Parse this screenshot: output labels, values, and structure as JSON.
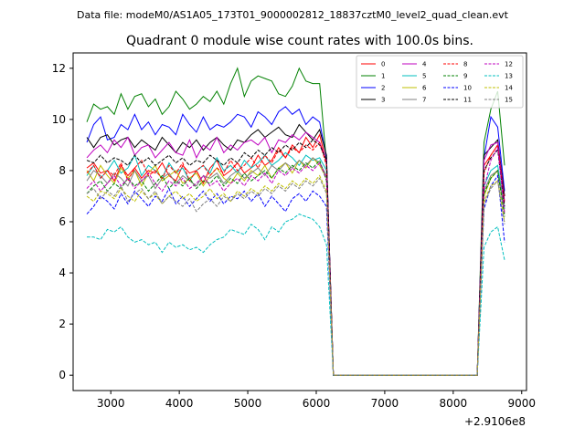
{
  "header": {
    "suptitle": "Data file: modeM0/AS1A05_173T01_9000002812_18837cztM0_level2_quad_clean.evt"
  },
  "chart_data": {
    "type": "line",
    "title": "Quadrant 0 module wise count rates with 100.0s bins.",
    "xlabel": "",
    "ylabel": "",
    "x_offset_label": "+2.9106e8",
    "xlim": [
      2450,
      9070
    ],
    "ylim": [
      -0.6,
      12.6
    ],
    "x_ticks": [
      3000,
      4000,
      5000,
      6000,
      7000,
      8000,
      9000
    ],
    "x_tick_labels": [
      "3000",
      "4000",
      "5000",
      "6000",
      "7000",
      "8000",
      "9000"
    ],
    "y_ticks": [
      0,
      2,
      4,
      6,
      8,
      10,
      12
    ],
    "y_tick_labels": [
      "0",
      "2",
      "4",
      "6",
      "8",
      "10",
      "12"
    ],
    "legend_position": "top-right",
    "gap_interval": [
      6250,
      8350
    ],
    "x": [
      2650,
      2750,
      2850,
      2950,
      3050,
      3150,
      3250,
      3350,
      3450,
      3550,
      3650,
      3750,
      3850,
      3950,
      4050,
      4150,
      4250,
      4350,
      4450,
      4550,
      4650,
      4750,
      4850,
      4950,
      5050,
      5150,
      5250,
      5350,
      5450,
      5550,
      5650,
      5750,
      5850,
      5950,
      6050,
      6150,
      6250,
      8350,
      8450,
      8550,
      8650,
      8750
    ],
    "series": [
      {
        "name": "0",
        "color": "#ff0000",
        "style": "solid",
        "values": [
          8.1,
          8.3,
          7.9,
          8.0,
          7.6,
          8.2,
          7.8,
          8.1,
          7.7,
          8.0,
          7.9,
          8.3,
          7.8,
          7.6,
          8.2,
          7.9,
          8.0,
          7.5,
          8.1,
          8.4,
          7.8,
          8.0,
          8.3,
          7.9,
          8.1,
          8.6,
          8.2,
          8.4,
          8.9,
          8.5,
          9.0,
          8.7,
          9.3,
          8.9,
          9.4,
          8.3,
          0.0,
          0.0,
          8.2,
          8.6,
          9.0,
          7.0
        ]
      },
      {
        "name": "1",
        "color": "#008000",
        "style": "solid",
        "values": [
          9.9,
          10.6,
          10.4,
          10.5,
          10.2,
          11.0,
          10.4,
          10.9,
          11.0,
          10.5,
          10.8,
          10.2,
          10.5,
          11.1,
          10.8,
          10.4,
          10.6,
          10.9,
          10.7,
          11.1,
          10.6,
          11.4,
          12.0,
          10.9,
          11.5,
          11.7,
          11.6,
          11.5,
          11.0,
          10.9,
          11.3,
          12.0,
          11.5,
          11.4,
          11.4,
          8.3,
          0.0,
          0.0,
          9.1,
          10.4,
          11.1,
          8.2
        ]
      },
      {
        "name": "2",
        "color": "#0000ff",
        "style": "solid",
        "values": [
          9.1,
          9.8,
          10.1,
          9.2,
          9.3,
          9.8,
          9.6,
          10.2,
          9.6,
          9.9,
          9.4,
          9.8,
          9.7,
          9.4,
          10.2,
          9.8,
          9.5,
          10.1,
          9.6,
          9.8,
          9.7,
          9.9,
          10.2,
          10.1,
          9.7,
          10.3,
          10.1,
          9.8,
          10.3,
          10.5,
          10.2,
          10.4,
          9.8,
          10.1,
          9.9,
          8.5,
          0.0,
          0.0,
          8.5,
          10.1,
          9.7,
          7.2
        ]
      },
      {
        "name": "3",
        "color": "#000000",
        "style": "solid",
        "values": [
          9.3,
          8.9,
          9.3,
          9.4,
          9.0,
          9.2,
          9.3,
          8.9,
          9.2,
          9.0,
          8.8,
          9.3,
          9.0,
          8.7,
          9.1,
          8.9,
          9.2,
          8.8,
          9.1,
          9.3,
          9.0,
          8.8,
          9.2,
          9.1,
          9.4,
          9.6,
          9.3,
          9.5,
          9.7,
          9.4,
          9.3,
          9.8,
          9.5,
          9.2,
          9.6,
          8.6,
          0.0,
          0.0,
          8.6,
          8.9,
          9.2,
          7.0
        ]
      },
      {
        "name": "4",
        "color": "#bf00bf",
        "style": "solid",
        "values": [
          8.5,
          8.8,
          9.0,
          8.7,
          9.2,
          8.9,
          9.3,
          8.6,
          8.9,
          9.0,
          8.5,
          8.8,
          9.1,
          8.7,
          8.6,
          9.2,
          8.5,
          9.0,
          8.8,
          9.3,
          8.7,
          9.0,
          8.8,
          9.1,
          9.2,
          9.0,
          9.3,
          8.7,
          9.2,
          9.1,
          9.4,
          9.2,
          9.5,
          9.3,
          9.1,
          8.4,
          0.0,
          0.0,
          8.4,
          9.0,
          9.1,
          6.8
        ]
      },
      {
        "name": "5",
        "color": "#00bfbf",
        "style": "solid",
        "values": [
          7.8,
          8.2,
          7.7,
          8.0,
          8.4,
          7.9,
          8.1,
          8.6,
          7.8,
          8.2,
          8.0,
          7.7,
          8.3,
          7.9,
          8.1,
          7.6,
          8.0,
          8.2,
          7.9,
          8.5,
          8.0,
          8.2,
          7.9,
          8.4,
          8.1,
          8.3,
          8.6,
          8.2,
          8.4,
          8.7,
          8.5,
          8.2,
          8.6,
          8.4,
          8.5,
          8.0,
          0.0,
          0.0,
          7.4,
          8.0,
          8.2,
          6.5
        ]
      },
      {
        "name": "6",
        "color": "#bfbf00",
        "style": "solid",
        "values": [
          8.0,
          7.6,
          8.2,
          7.8,
          7.5,
          8.1,
          7.7,
          8.0,
          7.4,
          7.9,
          8.2,
          7.6,
          7.8,
          8.0,
          7.5,
          7.7,
          7.9,
          7.4,
          7.8,
          8.1,
          7.7,
          7.5,
          7.9,
          7.6,
          8.0,
          7.8,
          8.2,
          7.7,
          8.1,
          8.3,
          7.9,
          8.4,
          8.1,
          8.5,
          8.2,
          7.7,
          0.0,
          0.0,
          7.0,
          7.7,
          8.0,
          6.4
        ]
      },
      {
        "name": "7",
        "color": "#808080",
        "style": "solid",
        "values": [
          7.6,
          8.0,
          7.8,
          7.5,
          7.9,
          7.7,
          7.4,
          8.0,
          7.6,
          7.8,
          7.3,
          7.7,
          7.9,
          7.5,
          7.8,
          7.6,
          7.4,
          7.8,
          7.7,
          7.9,
          7.5,
          7.8,
          8.0,
          7.7,
          7.9,
          8.1,
          7.8,
          8.2,
          8.0,
          8.3,
          8.1,
          8.4,
          8.2,
          8.5,
          8.3,
          7.8,
          0.0,
          0.0,
          7.2,
          7.8,
          8.0,
          6.3
        ]
      },
      {
        "name": "8",
        "color": "#ff0000",
        "style": "dashed",
        "values": [
          7.9,
          8.2,
          7.7,
          8.0,
          7.8,
          8.3,
          7.6,
          8.1,
          8.4,
          7.8,
          8.0,
          7.7,
          8.2,
          7.9,
          8.3,
          7.6,
          8.0,
          8.2,
          7.8,
          8.1,
          7.9,
          8.4,
          8.0,
          8.2,
          8.5,
          8.1,
          8.6,
          8.3,
          8.8,
          8.5,
          8.9,
          8.7,
          9.0,
          8.8,
          9.1,
          8.2,
          0.0,
          0.0,
          7.9,
          8.6,
          9.0,
          6.7
        ]
      },
      {
        "name": "9",
        "color": "#008000",
        "style": "dashed",
        "values": [
          7.1,
          7.4,
          7.6,
          7.2,
          7.5,
          7.3,
          7.7,
          7.4,
          7.6,
          7.2,
          7.5,
          7.8,
          7.3,
          7.6,
          7.4,
          7.7,
          7.3,
          7.6,
          7.5,
          7.8,
          7.4,
          7.7,
          7.5,
          7.9,
          7.6,
          7.8,
          8.0,
          7.7,
          8.1,
          7.9,
          8.2,
          8.0,
          8.3,
          8.1,
          8.4,
          7.6,
          0.0,
          0.0,
          7.1,
          7.7,
          8.0,
          6.2
        ]
      },
      {
        "name": "10",
        "color": "#0000ff",
        "style": "dashed",
        "values": [
          6.3,
          6.6,
          7.0,
          6.8,
          6.5,
          7.1,
          6.7,
          7.2,
          6.9,
          6.6,
          7.0,
          6.8,
          7.3,
          6.7,
          7.0,
          6.6,
          6.9,
          7.2,
          6.8,
          7.1,
          6.7,
          7.0,
          6.9,
          7.2,
          6.8,
          7.1,
          6.6,
          7.0,
          6.7,
          6.4,
          6.9,
          7.1,
          6.8,
          7.2,
          7.0,
          6.6,
          0.0,
          0.0,
          6.5,
          7.4,
          7.8,
          5.2
        ]
      },
      {
        "name": "11",
        "color": "#000000",
        "style": "dashed",
        "values": [
          8.4,
          8.3,
          8.6,
          8.3,
          8.5,
          8.4,
          8.2,
          8.6,
          8.3,
          8.5,
          8.2,
          8.4,
          8.6,
          8.3,
          8.5,
          8.2,
          8.4,
          8.3,
          8.6,
          8.4,
          8.2,
          8.5,
          8.3,
          8.7,
          8.5,
          8.8,
          8.6,
          8.9,
          8.7,
          9.0,
          8.8,
          9.1,
          8.9,
          9.2,
          9.0,
          8.4,
          0.0,
          0.0,
          8.0,
          8.5,
          8.8,
          6.6
        ]
      },
      {
        "name": "12",
        "color": "#bf00bf",
        "style": "dashed",
        "values": [
          7.3,
          7.6,
          7.2,
          7.5,
          7.8,
          7.4,
          7.7,
          7.3,
          7.6,
          7.9,
          7.5,
          7.2,
          7.6,
          7.4,
          7.7,
          7.3,
          7.5,
          7.8,
          7.4,
          7.6,
          7.2,
          7.5,
          7.7,
          7.4,
          7.8,
          7.6,
          7.9,
          7.5,
          8.0,
          7.8,
          8.1,
          7.9,
          8.2,
          8.0,
          8.3,
          7.7,
          0.0,
          0.0,
          7.3,
          8.4,
          8.9,
          6.3
        ]
      },
      {
        "name": "13",
        "color": "#00bfbf",
        "style": "dashed",
        "values": [
          5.4,
          5.4,
          5.3,
          5.7,
          5.6,
          5.8,
          5.4,
          5.2,
          5.3,
          5.1,
          5.2,
          4.8,
          5.2,
          5.0,
          5.1,
          4.9,
          5.0,
          4.8,
          5.1,
          5.3,
          5.4,
          5.7,
          5.6,
          5.5,
          5.9,
          5.7,
          5.3,
          5.8,
          5.6,
          6.0,
          6.1,
          6.3,
          6.2,
          6.1,
          5.8,
          5.1,
          0.0,
          0.0,
          5.0,
          5.6,
          5.8,
          4.5
        ]
      },
      {
        "name": "14",
        "color": "#bfbf00",
        "style": "dashed",
        "values": [
          7.0,
          6.8,
          7.2,
          7.1,
          6.9,
          7.3,
          7.0,
          6.8,
          7.2,
          6.9,
          7.1,
          6.7,
          7.0,
          7.2,
          6.9,
          7.1,
          6.8,
          7.0,
          7.3,
          6.9,
          7.1,
          6.8,
          7.2,
          7.0,
          7.3,
          7.1,
          7.4,
          7.2,
          7.5,
          7.3,
          7.6,
          7.4,
          7.7,
          7.5,
          7.8,
          7.2,
          0.0,
          0.0,
          6.8,
          7.4,
          7.6,
          6.0
        ]
      },
      {
        "name": "15",
        "color": "#808080",
        "style": "dashed",
        "values": [
          7.1,
          7.3,
          6.9,
          7.2,
          7.0,
          7.4,
          6.8,
          7.1,
          7.3,
          6.9,
          7.2,
          6.7,
          7.0,
          6.8,
          6.6,
          6.9,
          6.4,
          6.7,
          6.9,
          6.6,
          7.0,
          6.8,
          7.1,
          6.9,
          7.2,
          7.0,
          7.3,
          7.1,
          7.4,
          7.2,
          7.5,
          7.3,
          7.6,
          7.4,
          7.7,
          7.1,
          0.0,
          0.0,
          6.7,
          7.3,
          7.6,
          5.9
        ]
      }
    ]
  }
}
